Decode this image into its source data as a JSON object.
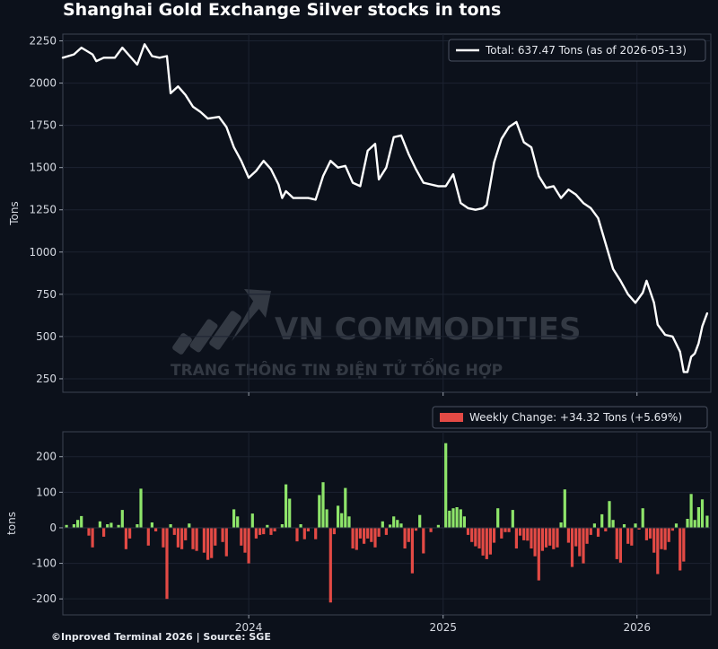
{
  "chart_data": [
    {
      "type": "line",
      "title": "Shanghai Gold Exchange Silver stocks in tons",
      "ylabel": "Tons",
      "xlabel": "",
      "ylim": [
        170,
        2290
      ],
      "yticks": [
        250,
        500,
        750,
        1000,
        1250,
        1500,
        1750,
        2000,
        2250
      ],
      "xticks": [
        {
          "label": "2024",
          "date": "2024-01-01"
        },
        {
          "label": "2025",
          "date": "2025-01-01"
        },
        {
          "label": "2026",
          "date": "2026-01-01"
        }
      ],
      "x_range": [
        "2023-01-16",
        "2026-05-20"
      ],
      "grid": true,
      "legend": "top-right",
      "series": [
        {
          "name": "Total: 637.47 Tons (as of 2026-05-13)",
          "color": "#ffffff",
          "points": [
            [
              "2023-01-16",
              2150
            ],
            [
              "2023-02-06",
              2170
            ],
            [
              "2023-02-20",
              2210
            ],
            [
              "2023-03-13",
              2170
            ],
            [
              "2023-03-20",
              2130
            ],
            [
              "2023-04-03",
              2150
            ],
            [
              "2023-04-24",
              2150
            ],
            [
              "2023-05-08",
              2210
            ],
            [
              "2023-05-22",
              2160
            ],
            [
              "2023-06-05",
              2110
            ],
            [
              "2023-06-19",
              2230
            ],
            [
              "2023-07-03",
              2160
            ],
            [
              "2023-07-17",
              2150
            ],
            [
              "2023-07-31",
              2160
            ],
            [
              "2023-08-07",
              1940
            ],
            [
              "2023-08-21",
              1980
            ],
            [
              "2023-09-04",
              1930
            ],
            [
              "2023-09-18",
              1860
            ],
            [
              "2023-10-02",
              1830
            ],
            [
              "2023-10-16",
              1790
            ],
            [
              "2023-11-06",
              1800
            ],
            [
              "2023-11-20",
              1740
            ],
            [
              "2023-12-04",
              1620
            ],
            [
              "2023-12-18",
              1540
            ],
            [
              "2024-01-01",
              1440
            ],
            [
              "2024-01-15",
              1480
            ],
            [
              "2024-01-29",
              1540
            ],
            [
              "2024-02-12",
              1490
            ],
            [
              "2024-02-26",
              1400
            ],
            [
              "2024-03-04",
              1320
            ],
            [
              "2024-03-11",
              1360
            ],
            [
              "2024-03-25",
              1320
            ],
            [
              "2024-04-08",
              1320
            ],
            [
              "2024-04-22",
              1320
            ],
            [
              "2024-05-06",
              1310
            ],
            [
              "2024-05-20",
              1450
            ],
            [
              "2024-06-03",
              1540
            ],
            [
              "2024-06-17",
              1500
            ],
            [
              "2024-07-01",
              1510
            ],
            [
              "2024-07-15",
              1410
            ],
            [
              "2024-07-29",
              1390
            ],
            [
              "2024-08-12",
              1600
            ],
            [
              "2024-08-26",
              1640
            ],
            [
              "2024-09-02",
              1430
            ],
            [
              "2024-09-16",
              1500
            ],
            [
              "2024-09-30",
              1680
            ],
            [
              "2024-10-14",
              1690
            ],
            [
              "2024-10-28",
              1580
            ],
            [
              "2024-11-11",
              1490
            ],
            [
              "2024-11-25",
              1410
            ],
            [
              "2024-12-09",
              1400
            ],
            [
              "2024-12-23",
              1390
            ],
            [
              "2025-01-06",
              1390
            ],
            [
              "2025-01-20",
              1460
            ],
            [
              "2025-02-03",
              1290
            ],
            [
              "2025-02-17",
              1260
            ],
            [
              "2025-03-03",
              1250
            ],
            [
              "2025-03-17",
              1260
            ],
            [
              "2025-03-24",
              1280
            ],
            [
              "2025-04-07",
              1530
            ],
            [
              "2025-04-21",
              1670
            ],
            [
              "2025-05-05",
              1740
            ],
            [
              "2025-05-19",
              1770
            ],
            [
              "2025-06-02",
              1650
            ],
            [
              "2025-06-16",
              1620
            ],
            [
              "2025-06-30",
              1450
            ],
            [
              "2025-07-14",
              1380
            ],
            [
              "2025-07-28",
              1390
            ],
            [
              "2025-08-11",
              1320
            ],
            [
              "2025-08-25",
              1370
            ],
            [
              "2025-09-08",
              1340
            ],
            [
              "2025-09-22",
              1290
            ],
            [
              "2025-10-06",
              1260
            ],
            [
              "2025-10-20",
              1200
            ],
            [
              "2025-11-03",
              1050
            ],
            [
              "2025-11-17",
              900
            ],
            [
              "2025-12-01",
              830
            ],
            [
              "2025-12-15",
              750
            ],
            [
              "2025-12-29",
              700
            ],
            [
              "2026-01-12",
              760
            ],
            [
              "2026-01-19",
              830
            ],
            [
              "2026-02-02",
              700
            ],
            [
              "2026-02-09",
              570
            ],
            [
              "2026-02-23",
              510
            ],
            [
              "2026-03-09",
              500
            ],
            [
              "2026-03-23",
              410
            ],
            [
              "2026-03-30",
              290
            ],
            [
              "2026-04-06",
              290
            ],
            [
              "2026-04-13",
              380
            ],
            [
              "2026-04-20",
              400
            ],
            [
              "2026-04-27",
              460
            ],
            [
              "2026-05-04",
              560
            ],
            [
              "2026-05-13",
              637
            ]
          ]
        }
      ]
    },
    {
      "type": "bar",
      "title": "",
      "ylabel": "tons",
      "xlabel": "",
      "ylim": [
        -245,
        270
      ],
      "yticks": [
        -200,
        -100,
        0,
        100,
        200
      ],
      "xticks": [
        {
          "label": "2024",
          "date": "2024-01-01"
        },
        {
          "label": "2025",
          "date": "2025-01-01"
        },
        {
          "label": "2026",
          "date": "2026-01-01"
        }
      ],
      "x_range": [
        "2023-01-16",
        "2026-05-20"
      ],
      "grid": true,
      "legend": "top-right",
      "positive_color": "#8ee56a",
      "negative_color": "#e34a45",
      "series_name": "Weekly Change: +34.32 Tons (+5.69%)",
      "bars": [
        [
          "2023-01-23",
          8
        ],
        [
          "2023-02-06",
          10
        ],
        [
          "2023-02-13",
          22
        ],
        [
          "2023-02-20",
          33
        ],
        [
          "2023-03-06",
          -22
        ],
        [
          "2023-03-13",
          -55
        ],
        [
          "2023-03-27",
          18
        ],
        [
          "2023-04-03",
          -25
        ],
        [
          "2023-04-10",
          10
        ],
        [
          "2023-04-17",
          14
        ],
        [
          "2023-05-01",
          8
        ],
        [
          "2023-05-08",
          50
        ],
        [
          "2023-05-15",
          -60
        ],
        [
          "2023-05-22",
          -30
        ],
        [
          "2023-06-05",
          10
        ],
        [
          "2023-06-12",
          110
        ],
        [
          "2023-06-26",
          -50
        ],
        [
          "2023-07-03",
          15
        ],
        [
          "2023-07-10",
          -10
        ],
        [
          "2023-07-24",
          -55
        ],
        [
          "2023-07-31",
          -200
        ],
        [
          "2023-08-07",
          10
        ],
        [
          "2023-08-14",
          -20
        ],
        [
          "2023-08-21",
          -55
        ],
        [
          "2023-08-28",
          -60
        ],
        [
          "2023-09-04",
          -35
        ],
        [
          "2023-09-11",
          12
        ],
        [
          "2023-09-18",
          -60
        ],
        [
          "2023-09-25",
          -65
        ],
        [
          "2023-10-09",
          -70
        ],
        [
          "2023-10-16",
          -90
        ],
        [
          "2023-10-23",
          -85
        ],
        [
          "2023-10-30",
          -50
        ],
        [
          "2023-11-13",
          -40
        ],
        [
          "2023-11-20",
          -80
        ],
        [
          "2023-12-04",
          52
        ],
        [
          "2023-12-11",
          32
        ],
        [
          "2023-12-18",
          -50
        ],
        [
          "2023-12-25",
          -70
        ],
        [
          "2024-01-01",
          -100
        ],
        [
          "2024-01-08",
          40
        ],
        [
          "2024-01-15",
          -30
        ],
        [
          "2024-01-22",
          -20
        ],
        [
          "2024-01-29",
          -18
        ],
        [
          "2024-02-05",
          8
        ],
        [
          "2024-02-12",
          -20
        ],
        [
          "2024-02-19",
          -10
        ],
        [
          "2024-03-04",
          10
        ],
        [
          "2024-03-11",
          122
        ],
        [
          "2024-03-18",
          82
        ],
        [
          "2024-04-01",
          -38
        ],
        [
          "2024-04-08",
          10
        ],
        [
          "2024-04-15",
          -32
        ],
        [
          "2024-04-22",
          -10
        ],
        [
          "2024-05-06",
          -32
        ],
        [
          "2024-05-13",
          92
        ],
        [
          "2024-05-20",
          128
        ],
        [
          "2024-05-27",
          52
        ],
        [
          "2024-06-03",
          -210
        ],
        [
          "2024-06-10",
          -18
        ],
        [
          "2024-06-17",
          62
        ],
        [
          "2024-06-24",
          41
        ],
        [
          "2024-07-01",
          112
        ],
        [
          "2024-07-08",
          32
        ],
        [
          "2024-07-15",
          -58
        ],
        [
          "2024-07-22",
          -62
        ],
        [
          "2024-07-29",
          -30
        ],
        [
          "2024-08-05",
          -45
        ],
        [
          "2024-08-12",
          -30
        ],
        [
          "2024-08-19",
          -40
        ],
        [
          "2024-08-26",
          -55
        ],
        [
          "2024-09-02",
          -25
        ],
        [
          "2024-09-09",
          18
        ],
        [
          "2024-09-16",
          -20
        ],
        [
          "2024-09-23",
          9
        ],
        [
          "2024-09-30",
          32
        ],
        [
          "2024-10-07",
          22
        ],
        [
          "2024-10-14",
          12
        ],
        [
          "2024-10-21",
          -58
        ],
        [
          "2024-10-28",
          -40
        ],
        [
          "2024-11-04",
          -128
        ],
        [
          "2024-11-11",
          -8
        ],
        [
          "2024-11-18",
          36
        ],
        [
          "2024-11-25",
          -72
        ],
        [
          "2024-12-09",
          -12
        ],
        [
          "2024-12-23",
          8
        ],
        [
          "2025-01-06",
          238
        ],
        [
          "2025-01-13",
          48
        ],
        [
          "2025-01-20",
          55
        ],
        [
          "2025-01-27",
          58
        ],
        [
          "2025-02-03",
          52
        ],
        [
          "2025-02-10",
          32
        ],
        [
          "2025-02-17",
          -20
        ],
        [
          "2025-02-24",
          -40
        ],
        [
          "2025-03-03",
          -52
        ],
        [
          "2025-03-10",
          -58
        ],
        [
          "2025-03-17",
          -78
        ],
        [
          "2025-03-24",
          -88
        ],
        [
          "2025-03-31",
          -75
        ],
        [
          "2025-04-07",
          -42
        ],
        [
          "2025-04-14",
          55
        ],
        [
          "2025-04-21",
          -30
        ],
        [
          "2025-04-28",
          -12
        ],
        [
          "2025-05-05",
          -12
        ],
        [
          "2025-05-12",
          50
        ],
        [
          "2025-05-19",
          -58
        ],
        [
          "2025-05-26",
          -22
        ],
        [
          "2025-06-02",
          -35
        ],
        [
          "2025-06-09",
          -36
        ],
        [
          "2025-06-16",
          -58
        ],
        [
          "2025-06-23",
          -80
        ],
        [
          "2025-06-30",
          -148
        ],
        [
          "2025-07-07",
          -65
        ],
        [
          "2025-07-14",
          -55
        ],
        [
          "2025-07-21",
          -50
        ],
        [
          "2025-07-28",
          -60
        ],
        [
          "2025-08-04",
          -55
        ],
        [
          "2025-08-11",
          15
        ],
        [
          "2025-08-18",
          108
        ],
        [
          "2025-08-25",
          -42
        ],
        [
          "2025-09-01",
          -110
        ],
        [
          "2025-09-08",
          -52
        ],
        [
          "2025-09-15",
          -80
        ],
        [
          "2025-09-22",
          -100
        ],
        [
          "2025-09-29",
          -45
        ],
        [
          "2025-10-06",
          -20
        ],
        [
          "2025-10-13",
          12
        ],
        [
          "2025-10-20",
          -25
        ],
        [
          "2025-10-27",
          38
        ],
        [
          "2025-11-03",
          -10
        ],
        [
          "2025-11-10",
          75
        ],
        [
          "2025-11-17",
          22
        ],
        [
          "2025-11-24",
          -88
        ],
        [
          "2025-12-01",
          -98
        ],
        [
          "2025-12-08",
          10
        ],
        [
          "2025-12-15",
          -45
        ],
        [
          "2025-12-22",
          -50
        ],
        [
          "2025-12-29",
          12
        ],
        [
          "2026-01-05",
          -5
        ],
        [
          "2026-01-12",
          55
        ],
        [
          "2026-01-19",
          -35
        ],
        [
          "2026-01-26",
          -30
        ],
        [
          "2026-02-02",
          -70
        ],
        [
          "2026-02-09",
          -130
        ],
        [
          "2026-02-16",
          -60
        ],
        [
          "2026-02-23",
          -62
        ],
        [
          "2026-03-02",
          -40
        ],
        [
          "2026-03-09",
          -8
        ],
        [
          "2026-03-16",
          12
        ],
        [
          "2026-03-23",
          -120
        ],
        [
          "2026-03-30",
          -95
        ],
        [
          "2026-04-06",
          25
        ],
        [
          "2026-04-13",
          95
        ],
        [
          "2026-04-20",
          22
        ],
        [
          "2026-04-27",
          58
        ],
        [
          "2026-05-04",
          80
        ],
        [
          "2026-05-13",
          34
        ]
      ]
    }
  ],
  "watermark": {
    "title": "VN COMMODITIES",
    "subtitle": "TRANG THÔNG TIN ĐIỆN TỬ TỔNG HỢP"
  },
  "footer": "©Inproved Terminal 2026 | Source: SGE",
  "colors": {
    "background": "#0c111b",
    "panel_border": "#3d4452",
    "grid": "#1c2331"
  }
}
